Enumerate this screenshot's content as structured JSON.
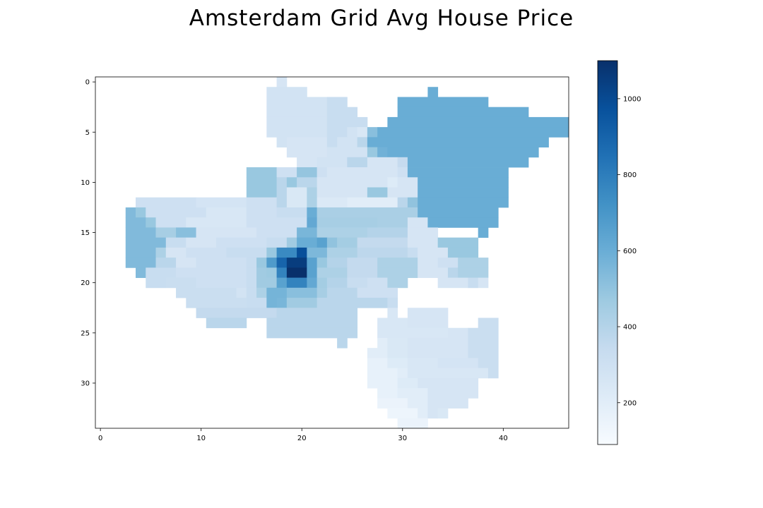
{
  "chart_data": {
    "type": "heatmap",
    "title": "Amsterdam Grid Avg House Price",
    "xlabel": "",
    "ylabel": "",
    "x_range": [
      -0.5,
      46.5
    ],
    "y_range": [
      -0.5,
      34.5
    ],
    "y_inverted": true,
    "x_ticks": [
      0,
      10,
      20,
      30,
      40
    ],
    "y_ticks": [
      0,
      5,
      10,
      15,
      20,
      25,
      30
    ],
    "colormap": "Blues",
    "color_range": [
      90,
      1100
    ],
    "colorbar_ticks": [
      200,
      400,
      600,
      800,
      1000
    ],
    "grid": false,
    "cells": [
      [
        0,
        18,
        18,
        260
      ],
      [
        1,
        17,
        20,
        280
      ],
      [
        1,
        33,
        33,
        600
      ],
      [
        2,
        17,
        22,
        280
      ],
      [
        2,
        23,
        24,
        330
      ],
      [
        2,
        30,
        38,
        600
      ],
      [
        3,
        17,
        22,
        280
      ],
      [
        3,
        23,
        25,
        330
      ],
      [
        3,
        30,
        42,
        600
      ],
      [
        4,
        17,
        22,
        280
      ],
      [
        4,
        23,
        26,
        330
      ],
      [
        4,
        29,
        46,
        600
      ],
      [
        5,
        17,
        22,
        280
      ],
      [
        5,
        23,
        24,
        330
      ],
      [
        5,
        25,
        25,
        280
      ],
      [
        5,
        26,
        26,
        250
      ],
      [
        5,
        27,
        27,
        520
      ],
      [
        5,
        28,
        46,
        600
      ],
      [
        6,
        18,
        18,
        280
      ],
      [
        6,
        19,
        22,
        260
      ],
      [
        6,
        23,
        23,
        330
      ],
      [
        6,
        24,
        25,
        280
      ],
      [
        6,
        26,
        26,
        380
      ],
      [
        6,
        27,
        44,
        600
      ],
      [
        7,
        19,
        22,
        260
      ],
      [
        7,
        23,
        26,
        280
      ],
      [
        7,
        27,
        27,
        480
      ],
      [
        7,
        28,
        28,
        580
      ],
      [
        7,
        29,
        43,
        600
      ],
      [
        8,
        20,
        21,
        260
      ],
      [
        8,
        22,
        24,
        280
      ],
      [
        8,
        25,
        26,
        380
      ],
      [
        8,
        27,
        29,
        260
      ],
      [
        8,
        30,
        30,
        340
      ],
      [
        8,
        31,
        42,
        600
      ],
      [
        9,
        15,
        17,
        480
      ],
      [
        9,
        18,
        19,
        300
      ],
      [
        9,
        20,
        21,
        490
      ],
      [
        9,
        22,
        22,
        300
      ],
      [
        9,
        23,
        29,
        260
      ],
      [
        9,
        30,
        30,
        300
      ],
      [
        9,
        31,
        40,
        600
      ],
      [
        10,
        15,
        17,
        480
      ],
      [
        10,
        18,
        18,
        380
      ],
      [
        10,
        19,
        19,
        480
      ],
      [
        10,
        20,
        21,
        380
      ],
      [
        10,
        22,
        28,
        260
      ],
      [
        10,
        29,
        29,
        220
      ],
      [
        10,
        30,
        31,
        260
      ],
      [
        10,
        32,
        40,
        600
      ],
      [
        11,
        15,
        17,
        480
      ],
      [
        11,
        18,
        18,
        380
      ],
      [
        11,
        19,
        20,
        240
      ],
      [
        11,
        21,
        21,
        420
      ],
      [
        11,
        22,
        26,
        260
      ],
      [
        11,
        27,
        28,
        480
      ],
      [
        11,
        29,
        31,
        260
      ],
      [
        11,
        32,
        40,
        600
      ],
      [
        12,
        4,
        9,
        300
      ],
      [
        12,
        10,
        14,
        270
      ],
      [
        12,
        15,
        17,
        300
      ],
      [
        12,
        18,
        18,
        380
      ],
      [
        12,
        19,
        20,
        240
      ],
      [
        12,
        21,
        21,
        420
      ],
      [
        12,
        22,
        24,
        230
      ],
      [
        12,
        25,
        29,
        200
      ],
      [
        12,
        30,
        30,
        380
      ],
      [
        12,
        31,
        31,
        500
      ],
      [
        12,
        32,
        40,
        600
      ],
      [
        13,
        3,
        3,
        540
      ],
      [
        13,
        4,
        4,
        480
      ],
      [
        13,
        5,
        10,
        300
      ],
      [
        13,
        11,
        14,
        250
      ],
      [
        13,
        15,
        17,
        300
      ],
      [
        13,
        18,
        20,
        330
      ],
      [
        13,
        21,
        21,
        600
      ],
      [
        13,
        22,
        31,
        430
      ],
      [
        13,
        32,
        39,
        600
      ],
      [
        14,
        3,
        4,
        540
      ],
      [
        14,
        5,
        5,
        480
      ],
      [
        14,
        6,
        8,
        300
      ],
      [
        14,
        9,
        14,
        250
      ],
      [
        14,
        15,
        20,
        300
      ],
      [
        14,
        21,
        21,
        620
      ],
      [
        14,
        22,
        27,
        440
      ],
      [
        14,
        28,
        30,
        430
      ],
      [
        14,
        31,
        32,
        260
      ],
      [
        14,
        33,
        39,
        600
      ],
      [
        15,
        3,
        5,
        540
      ],
      [
        15,
        6,
        7,
        440
      ],
      [
        15,
        8,
        9,
        520
      ],
      [
        15,
        10,
        15,
        260
      ],
      [
        15,
        16,
        19,
        300
      ],
      [
        15,
        20,
        21,
        560
      ],
      [
        15,
        22,
        26,
        420
      ],
      [
        15,
        27,
        30,
        400
      ],
      [
        15,
        31,
        33,
        260
      ],
      [
        15,
        38,
        38,
        600
      ],
      [
        16,
        3,
        6,
        540
      ],
      [
        16,
        7,
        8,
        330
      ],
      [
        16,
        9,
        11,
        260
      ],
      [
        16,
        12,
        16,
        300
      ],
      [
        16,
        17,
        18,
        330
      ],
      [
        16,
        19,
        19,
        460
      ],
      [
        16,
        20,
        21,
        600
      ],
      [
        16,
        22,
        22,
        650
      ],
      [
        16,
        23,
        23,
        500
      ],
      [
        16,
        24,
        25,
        450
      ],
      [
        16,
        26,
        30,
        350
      ],
      [
        16,
        31,
        33,
        260
      ],
      [
        16,
        34,
        37,
        480
      ],
      [
        17,
        3,
        5,
        540
      ],
      [
        17,
        6,
        6,
        420
      ],
      [
        17,
        7,
        8,
        260
      ],
      [
        17,
        9,
        12,
        300
      ],
      [
        17,
        13,
        16,
        330
      ],
      [
        17,
        17,
        17,
        480
      ],
      [
        17,
        18,
        19,
        750
      ],
      [
        17,
        20,
        20,
        980
      ],
      [
        17,
        21,
        22,
        550
      ],
      [
        17,
        23,
        25,
        420
      ],
      [
        17,
        26,
        30,
        370
      ],
      [
        17,
        31,
        31,
        330
      ],
      [
        17,
        32,
        34,
        260
      ],
      [
        17,
        35,
        37,
        480
      ],
      [
        18,
        3,
        5,
        540
      ],
      [
        18,
        6,
        7,
        380
      ],
      [
        18,
        8,
        9,
        260
      ],
      [
        18,
        10,
        14,
        300
      ],
      [
        18,
        15,
        15,
        330
      ],
      [
        18,
        16,
        16,
        480
      ],
      [
        18,
        17,
        17,
        680
      ],
      [
        18,
        18,
        18,
        900
      ],
      [
        18,
        19,
        20,
        1050
      ],
      [
        18,
        21,
        21,
        650
      ],
      [
        18,
        22,
        22,
        480
      ],
      [
        18,
        23,
        24,
        400
      ],
      [
        18,
        25,
        27,
        350
      ],
      [
        18,
        28,
        31,
        420
      ],
      [
        18,
        32,
        33,
        260
      ],
      [
        18,
        34,
        35,
        300
      ],
      [
        18,
        36,
        38,
        420
      ],
      [
        19,
        4,
        4,
        540
      ],
      [
        19,
        5,
        7,
        330
      ],
      [
        19,
        8,
        9,
        300
      ],
      [
        19,
        10,
        14,
        300
      ],
      [
        19,
        15,
        15,
        330
      ],
      [
        19,
        16,
        16,
        460
      ],
      [
        19,
        17,
        17,
        470
      ],
      [
        19,
        18,
        18,
        780
      ],
      [
        19,
        19,
        20,
        1100
      ],
      [
        19,
        21,
        21,
        650
      ],
      [
        19,
        22,
        24,
        420
      ],
      [
        19,
        25,
        27,
        350
      ],
      [
        19,
        28,
        31,
        420
      ],
      [
        19,
        32,
        34,
        260
      ],
      [
        19,
        35,
        35,
        380
      ],
      [
        19,
        36,
        38,
        420
      ],
      [
        20,
        5,
        6,
        330
      ],
      [
        20,
        7,
        9,
        320
      ],
      [
        20,
        10,
        14,
        300
      ],
      [
        20,
        15,
        15,
        330
      ],
      [
        20,
        16,
        17,
        460
      ],
      [
        20,
        18,
        18,
        650
      ],
      [
        20,
        19,
        20,
        780
      ],
      [
        20,
        21,
        21,
        620
      ],
      [
        20,
        22,
        22,
        450
      ],
      [
        20,
        23,
        24,
        400
      ],
      [
        20,
        25,
        26,
        330
      ],
      [
        20,
        27,
        28,
        300
      ],
      [
        20,
        29,
        30,
        420
      ],
      [
        20,
        34,
        36,
        260
      ],
      [
        20,
        37,
        37,
        330
      ],
      [
        20,
        38,
        38,
        260
      ],
      [
        21,
        8,
        13,
        320
      ],
      [
        21,
        14,
        14,
        280
      ],
      [
        21,
        15,
        15,
        330
      ],
      [
        21,
        16,
        16,
        420
      ],
      [
        21,
        17,
        18,
        570
      ],
      [
        21,
        19,
        21,
        520
      ],
      [
        21,
        22,
        22,
        440
      ],
      [
        21,
        23,
        25,
        380
      ],
      [
        21,
        26,
        29,
        300
      ],
      [
        22,
        9,
        14,
        320
      ],
      [
        22,
        15,
        16,
        330
      ],
      [
        22,
        17,
        17,
        570
      ],
      [
        22,
        18,
        18,
        560
      ],
      [
        22,
        19,
        21,
        460
      ],
      [
        22,
        22,
        28,
        380
      ],
      [
        22,
        29,
        29,
        330
      ],
      [
        23,
        10,
        17,
        350
      ],
      [
        23,
        18,
        25,
        380
      ],
      [
        23,
        29,
        29,
        250
      ],
      [
        23,
        31,
        34,
        260
      ],
      [
        24,
        11,
        14,
        380
      ],
      [
        24,
        17,
        25,
        380
      ],
      [
        24,
        28,
        30,
        250
      ],
      [
        24,
        31,
        34,
        260
      ],
      [
        24,
        38,
        39,
        320
      ],
      [
        25,
        17,
        25,
        380
      ],
      [
        25,
        28,
        34,
        250
      ],
      [
        25,
        35,
        36,
        260
      ],
      [
        25,
        37,
        39,
        320
      ],
      [
        26,
        24,
        24,
        380
      ],
      [
        26,
        28,
        28,
        200
      ],
      [
        26,
        29,
        30,
        240
      ],
      [
        26,
        31,
        31,
        260
      ],
      [
        26,
        32,
        36,
        260
      ],
      [
        26,
        37,
        39,
        320
      ],
      [
        27,
        27,
        28,
        200
      ],
      [
        27,
        29,
        30,
        240
      ],
      [
        27,
        31,
        32,
        260
      ],
      [
        27,
        33,
        36,
        260
      ],
      [
        27,
        37,
        39,
        320
      ],
      [
        28,
        27,
        28,
        170
      ],
      [
        28,
        29,
        30,
        220
      ],
      [
        28,
        31,
        33,
        250
      ],
      [
        28,
        34,
        37,
        270
      ],
      [
        28,
        38,
        39,
        320
      ],
      [
        29,
        27,
        29,
        170
      ],
      [
        29,
        30,
        30,
        200
      ],
      [
        29,
        31,
        38,
        250
      ],
      [
        29,
        39,
        39,
        320
      ],
      [
        30,
        27,
        29,
        170
      ],
      [
        30,
        30,
        31,
        220
      ],
      [
        30,
        32,
        37,
        260
      ],
      [
        31,
        28,
        29,
        170
      ],
      [
        31,
        30,
        32,
        200
      ],
      [
        31,
        33,
        37,
        260
      ],
      [
        32,
        28,
        30,
        150
      ],
      [
        32,
        31,
        32,
        200
      ],
      [
        32,
        33,
        36,
        260
      ],
      [
        33,
        29,
        31,
        140
      ],
      [
        33,
        32,
        32,
        200
      ],
      [
        33,
        33,
        33,
        260
      ],
      [
        33,
        34,
        34,
        240
      ],
      [
        34,
        30,
        32,
        150
      ]
    ]
  }
}
